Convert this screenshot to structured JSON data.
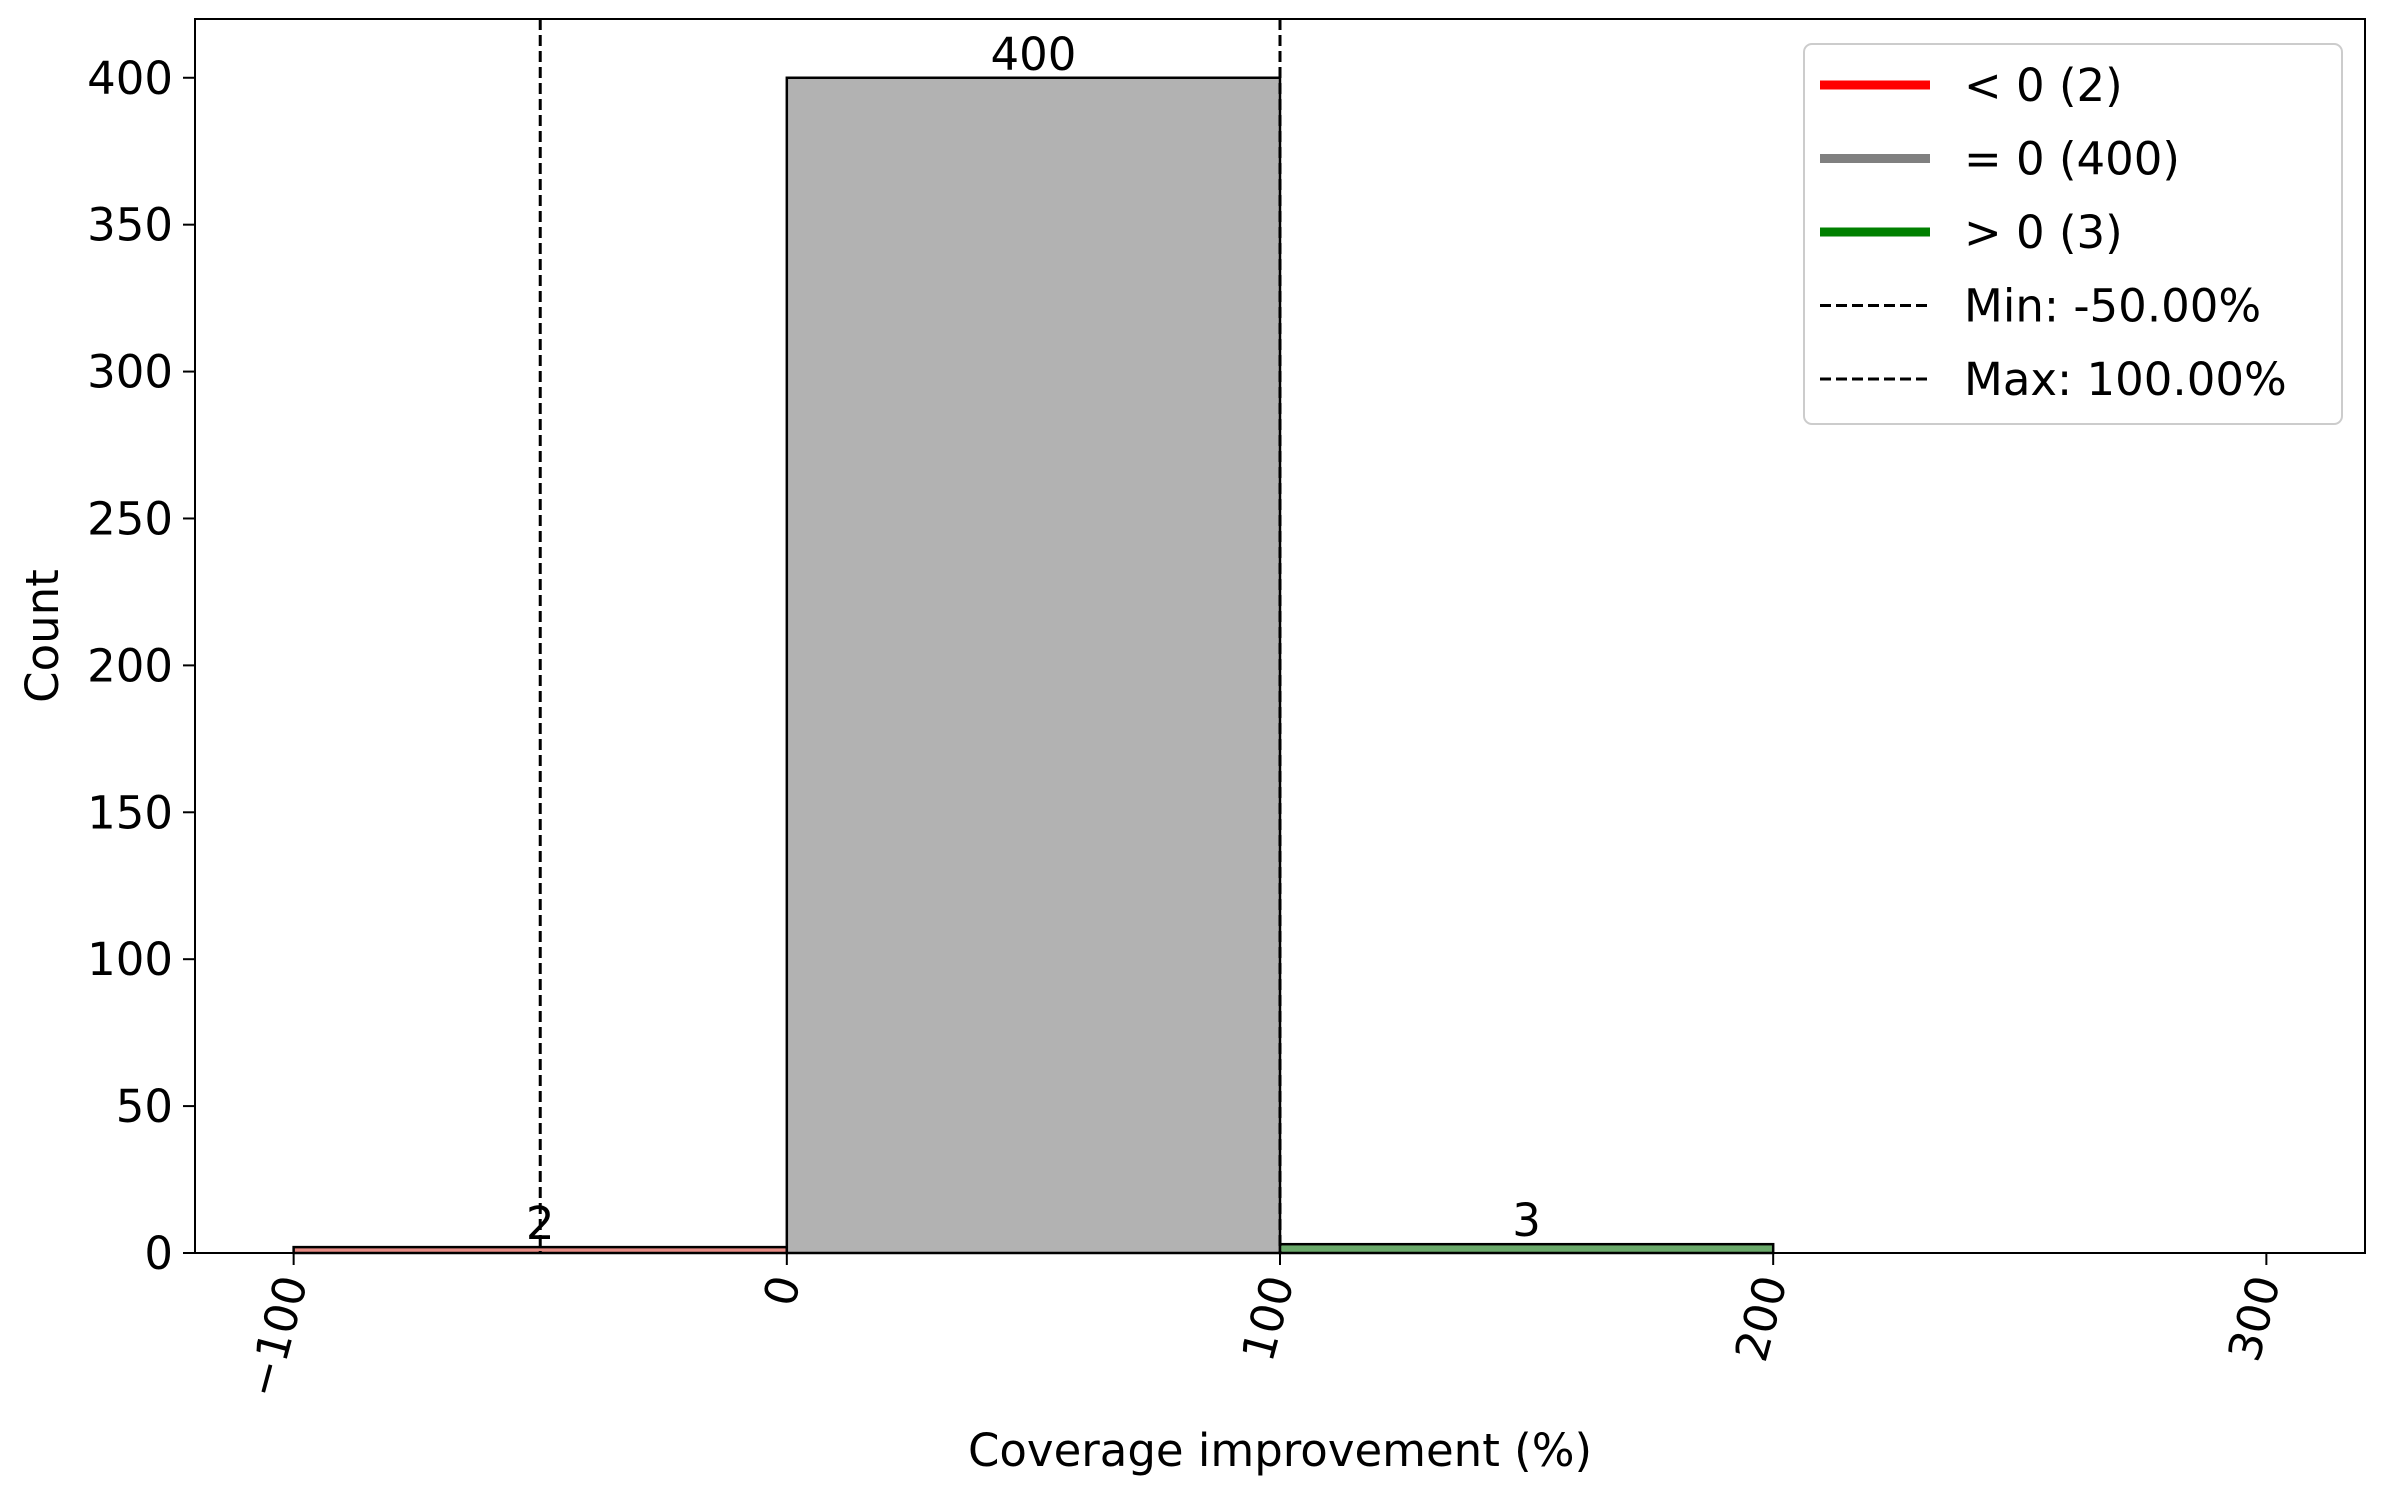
{
  "chart_data": {
    "type": "bar",
    "title": "",
    "xlabel": "Coverage improvement (%)",
    "ylabel": "Count",
    "xlim": [
      -120,
      320
    ],
    "ylim": [
      0,
      420
    ],
    "xticks": [
      -100,
      0,
      100,
      200,
      300
    ],
    "xtick_labels": [
      "−100",
      "0",
      "100",
      "200",
      "300"
    ],
    "yticks": [
      0,
      50,
      100,
      150,
      200,
      250,
      300,
      350,
      400
    ],
    "ytick_labels": [
      "0",
      "50",
      "100",
      "150",
      "200",
      "250",
      "300",
      "350",
      "400"
    ],
    "bins": [
      {
        "x0": -100,
        "x1": 0,
        "count": 2,
        "label": "2",
        "color": "#e88c85"
      },
      {
        "x0": 0,
        "x1": 100,
        "count": 400,
        "label": "400",
        "color": "#b2b2b2"
      },
      {
        "x0": 100,
        "x1": 200,
        "count": 3,
        "label": "3",
        "color": "#6aa96a"
      }
    ],
    "vlines": [
      {
        "x": -50,
        "label": "Min: -50.00%"
      },
      {
        "x": 100,
        "label": "Max: 100.00%"
      }
    ],
    "legend": {
      "placement": "top-right",
      "entries": [
        {
          "label": "< 0 (2)",
          "color": "#ff0000",
          "style": "solid"
        },
        {
          "label": "= 0 (400)",
          "color": "#808080",
          "style": "solid"
        },
        {
          "label": "> 0 (3)",
          "color": "#008000",
          "style": "solid"
        },
        {
          "label": "Min: -50.00%",
          "color": "#000000",
          "style": "dashed"
        },
        {
          "label": "Max: 100.00%",
          "color": "#000000",
          "style": "dashed"
        }
      ]
    },
    "grid": false
  }
}
